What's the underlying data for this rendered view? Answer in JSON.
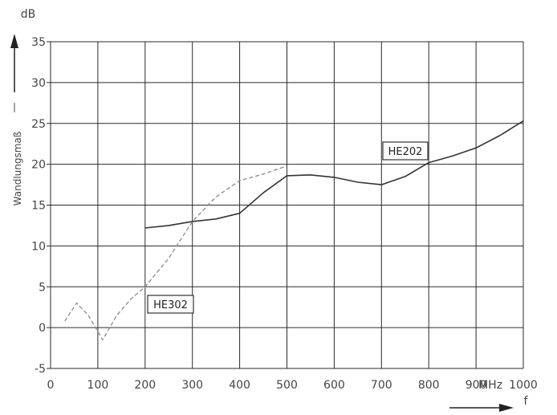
{
  "chart_data": {
    "type": "line",
    "xlabel": "f",
    "ylabel": "Wandlungsmaß",
    "y_unit": "dB",
    "x_unit": "MHz",
    "xlim": [
      0,
      1000
    ],
    "ylim": [
      -5,
      35
    ],
    "x_ticks": [
      "0",
      "100",
      "200",
      "300",
      "400",
      "500",
      "600",
      "700",
      "800",
      "900",
      "1000"
    ],
    "y_ticks": [
      "-5",
      "0",
      "5",
      "10",
      "15",
      "20",
      "25",
      "30",
      "35"
    ],
    "grid": true,
    "series": [
      {
        "name": "HE202",
        "color": "#333333",
        "style": "solid",
        "x": [
          200,
          250,
          300,
          350,
          400,
          450,
          500,
          550,
          600,
          650,
          700,
          750,
          800,
          850,
          900,
          950,
          1000
        ],
        "y": [
          12.2,
          12.5,
          13.0,
          13.3,
          14.0,
          16.5,
          18.6,
          18.7,
          18.4,
          17.8,
          17.5,
          18.5,
          20.2,
          21.0,
          22.0,
          23.5,
          25.3
        ]
      },
      {
        "name": "HE302",
        "color": "#8a8a8a",
        "style": "dashed",
        "x": [
          30,
          55,
          80,
          110,
          140,
          170,
          200,
          250,
          300,
          350,
          400,
          450,
          500
        ],
        "y": [
          0.8,
          3.0,
          1.5,
          -1.5,
          1.5,
          3.5,
          5.0,
          8.5,
          13.0,
          16.0,
          18.0,
          18.8,
          19.8
        ]
      }
    ]
  }
}
